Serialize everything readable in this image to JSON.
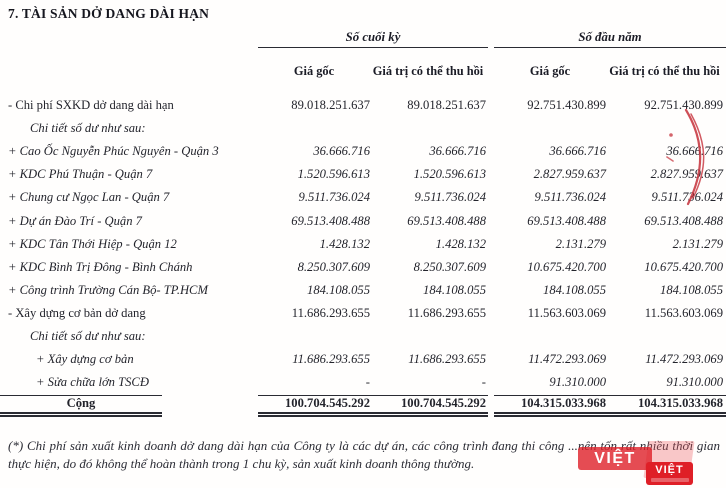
{
  "title": "7. TÀI SẢN DỞ DANG DÀI HẠN",
  "table": {
    "groups": [
      {
        "label": "Số cuối kỳ"
      },
      {
        "label": "Số đầu năm"
      }
    ],
    "subheaders": [
      "Giá gốc",
      "Giá trị có thể thu hồi",
      "Giá gốc",
      "Giá trị có thể thu hồi"
    ],
    "rows": [
      {
        "label": "- Chi phí SXKD dở dang dài hạn",
        "style": "main",
        "values": [
          "89.018.251.637",
          "89.018.251.637",
          "92.751.430.899",
          "92.751.430.899"
        ]
      },
      {
        "label": "Chi tiết số dư như sau:",
        "style": "note",
        "values": [
          "",
          "",
          "",
          ""
        ]
      },
      {
        "label": "+ Cao Ốc Nguyễn Phúc Nguyên - Quận 3",
        "style": "detail",
        "values": [
          "36.666.716",
          "36.666.716",
          "36.666.716",
          "36.666.716"
        ]
      },
      {
        "label": "+ KDC Phú Thuận - Quận 7",
        "style": "detail",
        "values": [
          "1.520.596.613",
          "1.520.596.613",
          "2.827.959.637",
          "2.827.959.637"
        ]
      },
      {
        "label": "+ Chung cư Ngọc Lan - Quận 7",
        "style": "detail",
        "values": [
          "9.511.736.024",
          "9.511.736.024",
          "9.511.736.024",
          "9.511.736.024"
        ]
      },
      {
        "label": "+ Dự án Đào Trí - Quận 7",
        "style": "detail",
        "values": [
          "69.513.408.488",
          "69.513.408.488",
          "69.513.408.488",
          "69.513.408.488"
        ]
      },
      {
        "label": "+ KDC Tân Thới Hiệp - Quận 12",
        "style": "detail",
        "values": [
          "1.428.132",
          "1.428.132",
          "2.131.279",
          "2.131.279"
        ]
      },
      {
        "label": "+ KDC Bình Trị Đông - Bình Chánh",
        "style": "detail",
        "values": [
          "8.250.307.609",
          "8.250.307.609",
          "10.675.420.700",
          "10.675.420.700"
        ]
      },
      {
        "label": "+ Công trình Trường Cán Bộ- TP.HCM",
        "style": "detail",
        "values": [
          "184.108.055",
          "184.108.055",
          "184.108.055",
          "184.108.055"
        ]
      },
      {
        "label": "- Xây dựng cơ bản dở dang",
        "style": "main",
        "values": [
          "11.686.293.655",
          "11.686.293.655",
          "11.563.603.069",
          "11.563.603.069"
        ]
      },
      {
        "label": "Chi tiết số dư như sau:",
        "style": "note",
        "values": [
          "",
          "",
          "",
          ""
        ]
      },
      {
        "label": "+ Xây dựng cơ bản",
        "style": "detail",
        "indent": 2,
        "values": [
          "11.686.293.655",
          "11.686.293.655",
          "11.472.293.069",
          "11.472.293.069"
        ]
      },
      {
        "label": "+ Sửa chữa lớn TSCĐ",
        "style": "detail",
        "indent": 2,
        "values": [
          "-",
          "-",
          "91.310.000",
          "91.310.000"
        ]
      },
      {
        "label": "Cộng",
        "style": "total",
        "values": [
          "100.704.545.292",
          "100.704.545.292",
          "104.315.033.968",
          "104.315.033.968"
        ]
      }
    ]
  },
  "footnote": "(*) Chi phí sản xuất kinh doanh dở dang dài hạn của Công ty là các dự án, các công trình đang thi công ...nên tốn rất nhiều thời gian thực hiện, do đó không thể hoàn thành trong 1 chu kỳ, sản xuất kinh doanh thông thường.",
  "watermark": {
    "text_large": "VIỆT",
    "text_small": "VIỆT",
    "color": "#df1f27"
  },
  "annotation": {
    "pen_color": "#c5303a"
  }
}
